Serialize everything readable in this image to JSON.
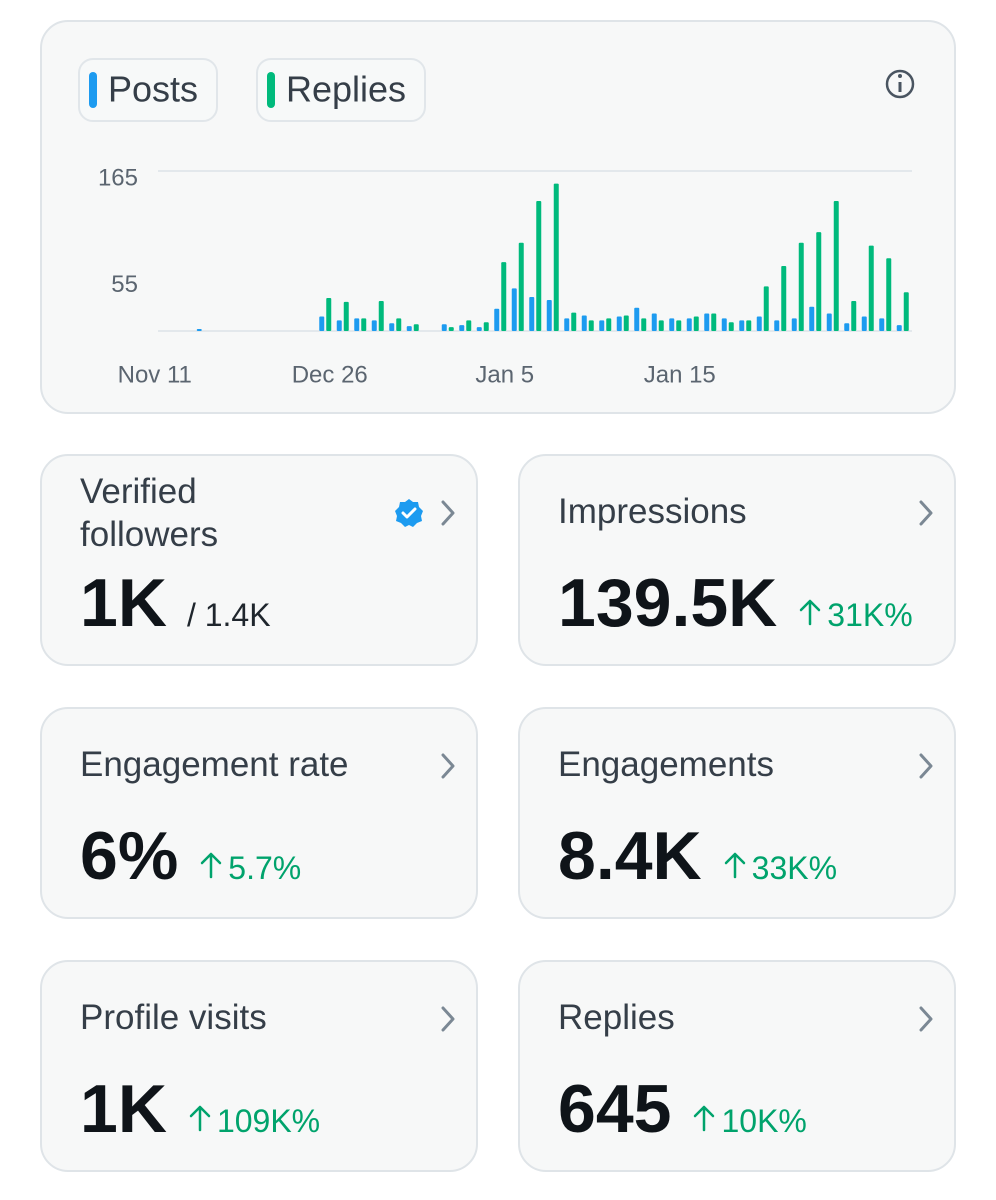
{
  "chart_data": {
    "type": "bar",
    "categories": [
      "Nov 11",
      null,
      null,
      null,
      null,
      null,
      null,
      null,
      null,
      null,
      "Dec 26",
      null,
      null,
      null,
      null,
      null,
      null,
      null,
      null,
      null,
      "Jan 5",
      null,
      null,
      null,
      null,
      null,
      null,
      null,
      null,
      null,
      "Jan 15",
      null,
      null,
      null,
      null,
      null,
      null,
      null,
      null,
      null,
      null,
      null,
      null
    ],
    "series": [
      {
        "name": "Posts",
        "color": "#1d9bf0",
        "values": [
          0,
          0,
          2,
          0,
          0,
          0,
          0,
          0,
          0,
          15,
          11,
          13,
          11,
          8,
          5,
          0,
          7,
          6,
          4,
          23,
          44,
          35,
          32,
          13,
          16,
          11,
          15,
          24,
          18,
          13,
          13,
          18,
          13,
          11,
          15,
          11,
          13,
          25,
          18,
          8,
          15,
          13,
          6
        ]
      },
      {
        "name": "Replies",
        "color": "#00ba7c",
        "values": [
          0,
          0,
          0,
          0,
          0,
          0,
          0,
          0,
          0,
          34,
          30,
          13,
          31,
          13,
          7,
          0,
          4,
          11,
          9,
          71,
          91,
          134,
          152,
          19,
          11,
          13,
          16,
          13,
          11,
          11,
          15,
          18,
          9,
          11,
          46,
          67,
          91,
          102,
          134,
          31,
          88,
          75,
          40
        ]
      }
    ],
    "ylim": [
      0,
      165
    ],
    "yticks": [
      55,
      165
    ],
    "grid": true
  },
  "cards": [
    {
      "title": "Verified followers",
      "value": "1K",
      "total": "/ 1.4K",
      "verified": true
    },
    {
      "title": "Impressions",
      "value": "139.5K",
      "change": "31K%"
    },
    {
      "title": "Engagement rate",
      "value": "6%",
      "change": "5.7%"
    },
    {
      "title": "Engagements",
      "value": "8.4K",
      "change": "33K%"
    },
    {
      "title": "Profile visits",
      "value": "1K",
      "change": "109K%"
    },
    {
      "title": "Replies",
      "value": "645",
      "change": "10K%"
    }
  ]
}
